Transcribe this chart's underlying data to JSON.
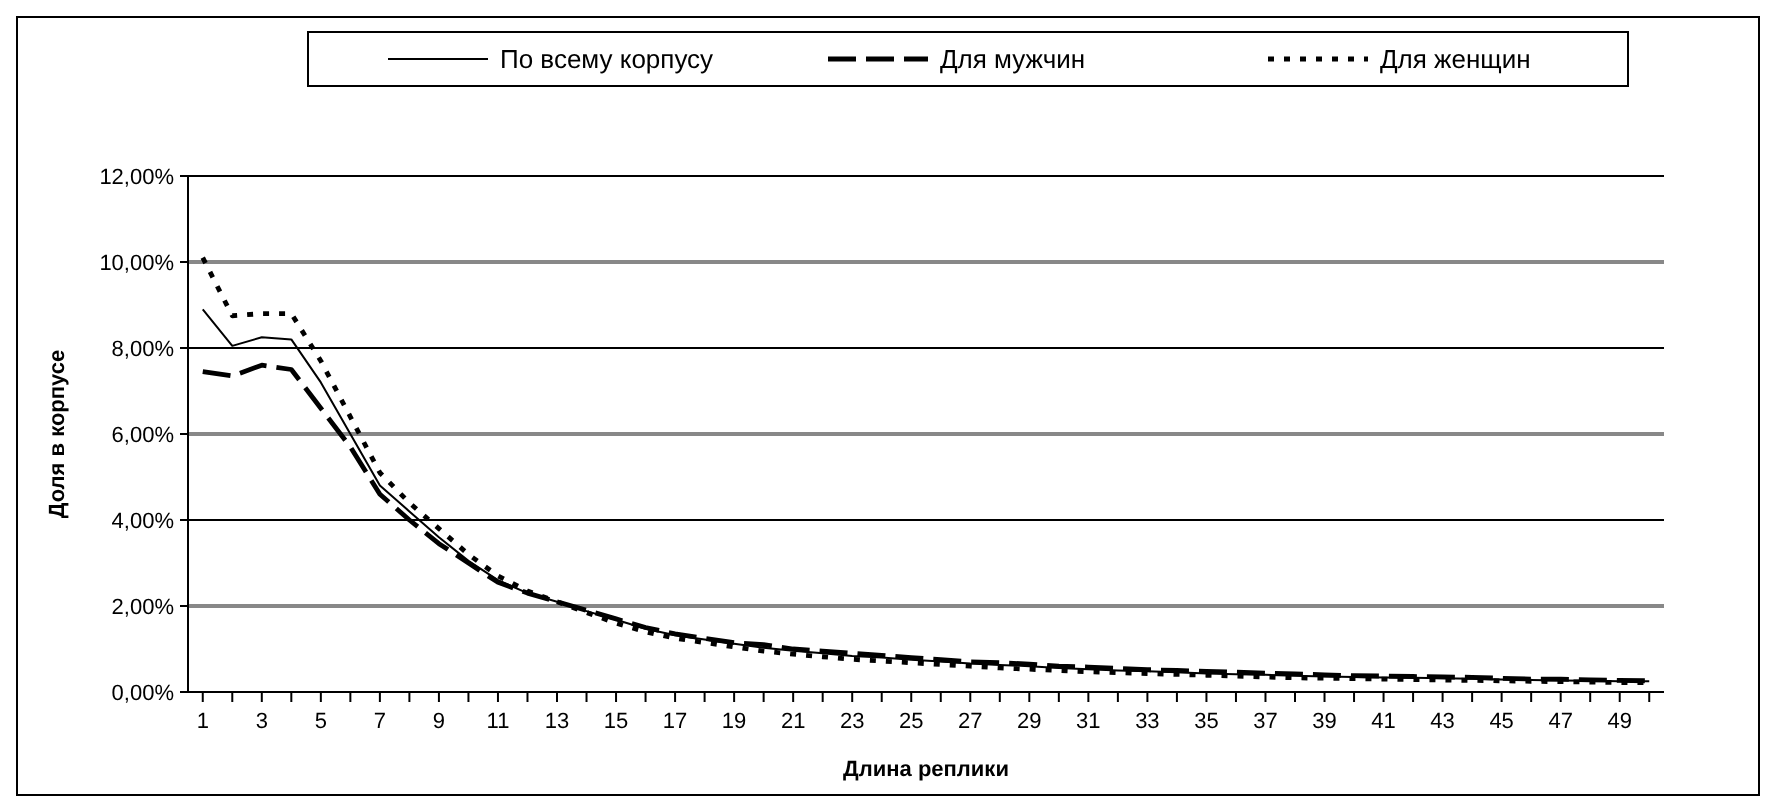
{
  "chart_data": {
    "type": "line",
    "xlabel": "Длина реплики",
    "ylabel": "Доля в корпусе",
    "x": [
      1,
      2,
      3,
      4,
      5,
      6,
      7,
      8,
      9,
      10,
      11,
      12,
      13,
      14,
      15,
      16,
      17,
      18,
      19,
      20,
      21,
      22,
      23,
      24,
      25,
      26,
      27,
      28,
      29,
      30,
      31,
      32,
      33,
      34,
      35,
      36,
      37,
      38,
      39,
      40,
      41,
      42,
      43,
      44,
      45,
      46,
      47,
      48,
      49,
      50
    ],
    "xlim": [
      0.5,
      50.5
    ],
    "xticks": [
      1,
      {
        "value": 2,
        "label": null
      },
      3,
      {
        "value": 4,
        "label": null
      },
      5,
      {
        "value": 6,
        "label": null
      },
      7,
      {
        "value": 8,
        "label": null
      },
      9,
      {
        "value": 10,
        "label": null
      },
      11,
      {
        "value": 12,
        "label": null
      },
      13,
      {
        "value": 14,
        "label": null
      },
      15,
      {
        "value": 16,
        "label": null
      },
      17,
      {
        "value": 18,
        "label": null
      },
      19,
      {
        "value": 20,
        "label": null
      },
      21,
      {
        "value": 22,
        "label": null
      },
      23,
      {
        "value": 24,
        "label": null
      },
      25,
      {
        "value": 26,
        "label": null
      },
      27,
      {
        "value": 28,
        "label": null
      },
      29,
      {
        "value": 30,
        "label": null
      },
      31,
      {
        "value": 32,
        "label": null
      },
      33,
      {
        "value": 34,
        "label": null
      },
      35,
      {
        "value": 36,
        "label": null
      },
      37,
      {
        "value": 38,
        "label": null
      },
      39,
      {
        "value": 40,
        "label": null
      },
      41,
      {
        "value": 42,
        "label": null
      },
      43,
      {
        "value": 44,
        "label": null
      },
      45,
      {
        "value": 46,
        "label": null
      },
      47,
      {
        "value": 48,
        "label": null
      },
      49,
      {
        "value": 50,
        "label": null
      }
    ],
    "series": [
      {
        "name": "По всему корпусу",
        "color": "#000000",
        "line_style": "solid",
        "values": [
          8.9,
          8.05,
          8.25,
          8.2,
          7.2,
          6.0,
          4.8,
          4.2,
          3.6,
          3.05,
          2.6,
          2.3,
          2.1,
          1.88,
          1.68,
          1.47,
          1.32,
          1.22,
          1.12,
          1.03,
          0.96,
          0.9,
          0.84,
          0.8,
          0.75,
          0.71,
          0.66,
          0.63,
          0.6,
          0.56,
          0.53,
          0.5,
          0.48,
          0.46,
          0.43,
          0.41,
          0.4,
          0.38,
          0.36,
          0.35,
          0.34,
          0.33,
          0.32,
          0.31,
          0.29,
          0.28,
          0.27,
          0.26,
          0.25,
          0.25
        ]
      },
      {
        "name": "Для мужчин",
        "color": "#000000",
        "line_style": "dashed",
        "values": [
          7.45,
          7.35,
          7.6,
          7.5,
          6.6,
          5.7,
          4.6,
          4.0,
          3.45,
          3.0,
          2.55,
          2.3,
          2.1,
          1.9,
          1.7,
          1.5,
          1.35,
          1.25,
          1.15,
          1.1,
          1.0,
          0.95,
          0.9,
          0.85,
          0.8,
          0.75,
          0.7,
          0.68,
          0.65,
          0.6,
          0.58,
          0.55,
          0.52,
          0.5,
          0.48,
          0.46,
          0.44,
          0.42,
          0.4,
          0.38,
          0.37,
          0.36,
          0.35,
          0.34,
          0.32,
          0.3,
          0.3,
          0.28,
          0.27,
          0.26
        ]
      },
      {
        "name": "Для женщин",
        "color": "#000000",
        "line_style": "dotted",
        "values": [
          10.1,
          8.75,
          8.8,
          8.8,
          7.7,
          6.4,
          5.1,
          4.4,
          3.8,
          3.2,
          2.7,
          2.35,
          2.1,
          1.85,
          1.6,
          1.4,
          1.25,
          1.15,
          1.05,
          0.95,
          0.88,
          0.82,
          0.76,
          0.72,
          0.68,
          0.64,
          0.6,
          0.56,
          0.53,
          0.5,
          0.47,
          0.45,
          0.43,
          0.41,
          0.39,
          0.37,
          0.35,
          0.33,
          0.32,
          0.31,
          0.3,
          0.29,
          0.28,
          0.27,
          0.26,
          0.25,
          0.24,
          0.23,
          0.22,
          0.22
        ]
      }
    ],
    "ylim": [
      0,
      12
    ],
    "yticks": [
      {
        "value": 0,
        "label": "0,00%"
      },
      {
        "value": 2,
        "label": "2,00%"
      },
      {
        "value": 4,
        "label": "4,00%"
      },
      {
        "value": 6,
        "label": "6,00%"
      },
      {
        "value": 8,
        "label": "8,00%"
      },
      {
        "value": 10,
        "label": "10,00%"
      },
      {
        "value": 12,
        "label": "12,00%"
      }
    ],
    "grid": "y",
    "legend": "top",
    "marker": "none"
  }
}
